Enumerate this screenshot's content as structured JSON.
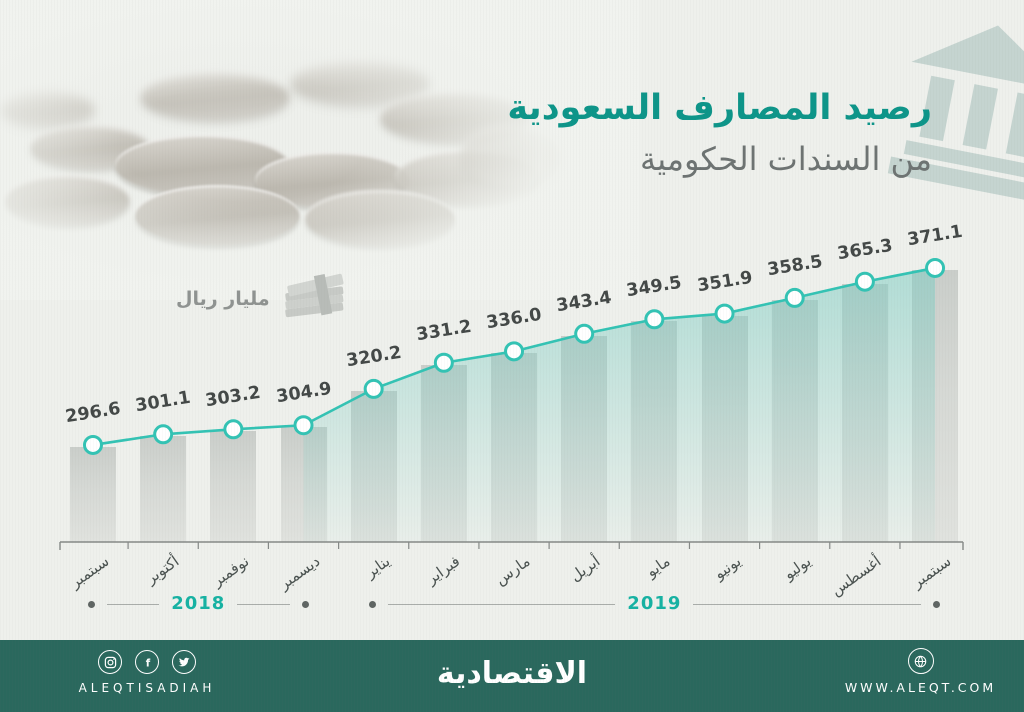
{
  "header": {
    "title_line1": "رصيد المصارف السعودية",
    "title_line2": "من السندات الحكومية",
    "title_color": "#0d9589"
  },
  "unit": {
    "label": "مليار ريال"
  },
  "chart_data": {
    "type": "bar+line",
    "title": "رصيد المصارف السعودية من السندات الحكومية",
    "unit": "مليار ريال",
    "categories": [
      "سبتمبر",
      "أكتوبر",
      "نوفمبر",
      "ديسمبر",
      "يناير",
      "فبراير",
      "مارس",
      "أبريل",
      "مايو",
      "يونيو",
      "يوليو",
      "أغسطس",
      "سبتمبر"
    ],
    "values": [
      296.6,
      301.1,
      303.2,
      304.9,
      320.2,
      331.2,
      336.0,
      343.4,
      349.5,
      351.9,
      358.5,
      365.3,
      371.1
    ],
    "value_labels": [
      "296.6",
      "301.1",
      "303.2",
      "304.9",
      "320.2",
      "331.2",
      "336.0",
      "343.4",
      "349.5",
      "351.9",
      "358.5",
      "365.3",
      "371.1"
    ],
    "year_groups": [
      {
        "label": "2018",
        "start": 0,
        "end": 3
      },
      {
        "label": "2019",
        "start": 4,
        "end": 12
      }
    ],
    "ylim": [
      256.6,
      385
    ],
    "grid": false,
    "legend_position": "none",
    "area_fill_start_index": 3,
    "colors": {
      "line": "#33c3b4",
      "marker_fill": "#ffffff",
      "bar": "#ccd0cd",
      "area": "#7fcdc3",
      "value_text": "#434847",
      "month_text": "#4a5250",
      "year_text": "#16b2a3",
      "axis": "#858987"
    }
  },
  "footer": {
    "brand_name": "الاقتصادية",
    "handle": "ALEQTISADIAH",
    "website": "WWW.ALEQT.COM",
    "social": [
      "instagram",
      "facebook",
      "twitter"
    ],
    "bg_color": "#2a685d"
  }
}
